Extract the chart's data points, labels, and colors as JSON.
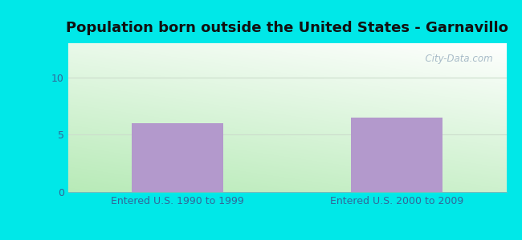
{
  "title": "Population born outside the United States - Garnavillo",
  "categories": [
    "Entered U.S. 1990 to 1999",
    "Entered U.S. 2000 to 2009"
  ],
  "values": [
    6.0,
    6.5
  ],
  "bar_color": "#b399cc",
  "outer_bg_color": "#00e8e8",
  "plot_bg_top": "#f0faf0",
  "plot_bg_bottom": "#c8eec8",
  "ylim": [
    0,
    13
  ],
  "yticks": [
    0,
    5,
    10
  ],
  "title_fontsize": 13,
  "tick_label_color": "#336699",
  "tick_label_fontsize": 9,
  "watermark": "  City-Data.com",
  "grid_color": "#ccddcc",
  "title_color": "#111111"
}
